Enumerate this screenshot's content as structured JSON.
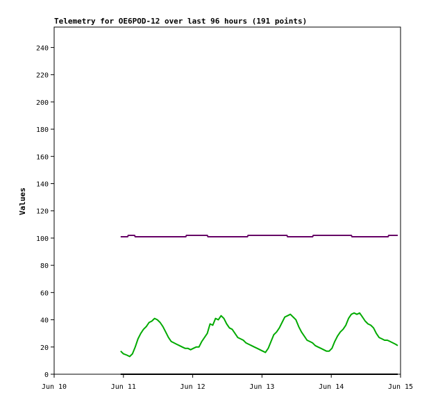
{
  "chart_data": {
    "type": "line",
    "title": "Telemetry for OE6POD-12 over last 96 hours (191 points)",
    "xlabel": "",
    "ylabel": "Values",
    "xlim": [
      "Jun 10",
      "Jun 15"
    ],
    "ylim": [
      0,
      255
    ],
    "x_ticks": [
      "Jun 10",
      "Jun 11",
      "Jun 12",
      "Jun 13",
      "Jun 14",
      "Jun 15"
    ],
    "y_ticks": [
      0,
      20,
      40,
      60,
      80,
      100,
      120,
      140,
      160,
      180,
      200,
      220,
      240
    ],
    "grid": false,
    "legend": "none",
    "series": [
      {
        "color": "#660066",
        "x_days": [
          0.96,
          1.06,
          1.07,
          1.16,
          1.17,
          1.9,
          1.91,
          2.21,
          2.22,
          2.79,
          2.8,
          3.36,
          3.37,
          3.73,
          3.74,
          4.29,
          4.3,
          4.82,
          4.83,
          4.96
        ],
        "values": [
          101,
          101,
          102,
          102,
          101,
          101,
          102,
          102,
          101,
          101,
          102,
          102,
          101,
          101,
          102,
          102,
          101,
          101,
          102,
          102
        ]
      },
      {
        "color": "#00aa00",
        "x_days": [
          0.96,
          1.0,
          1.05,
          1.09,
          1.13,
          1.17,
          1.21,
          1.25,
          1.29,
          1.33,
          1.37,
          1.41,
          1.45,
          1.49,
          1.53,
          1.57,
          1.61,
          1.65,
          1.69,
          1.73,
          1.77,
          1.81,
          1.85,
          1.89,
          1.93,
          1.97,
          2.01,
          2.05,
          2.09,
          2.13,
          2.17,
          2.21,
          2.25,
          2.29,
          2.33,
          2.37,
          2.41,
          2.45,
          2.49,
          2.53,
          2.57,
          2.61,
          2.65,
          2.69,
          2.73,
          2.77,
          2.81,
          2.85,
          2.89,
          2.93,
          2.97,
          3.01,
          3.05,
          3.09,
          3.13,
          3.17,
          3.21,
          3.25,
          3.29,
          3.33,
          3.37,
          3.41,
          3.45,
          3.49,
          3.53,
          3.57,
          3.61,
          3.65,
          3.69,
          3.73,
          3.77,
          3.81,
          3.85,
          3.89,
          3.93,
          3.97,
          4.01,
          4.05,
          4.09,
          4.13,
          4.17,
          4.21,
          4.25,
          4.29,
          4.33,
          4.37,
          4.41,
          4.45,
          4.49,
          4.53,
          4.57,
          4.61,
          4.65,
          4.69,
          4.73,
          4.77,
          4.81,
          4.85,
          4.89,
          4.93,
          4.96
        ],
        "values": [
          17,
          15,
          14,
          13,
          15,
          20,
          26,
          30,
          33,
          35,
          38,
          39,
          41,
          40,
          38,
          35,
          31,
          27,
          24,
          23,
          22,
          21,
          20,
          19,
          19,
          18,
          19,
          20,
          20,
          24,
          27,
          30,
          37,
          36,
          41,
          40,
          43,
          41,
          37,
          34,
          33,
          30,
          27,
          26,
          25,
          23,
          22,
          21,
          20,
          19,
          18,
          17,
          16,
          19,
          24,
          29,
          31,
          34,
          38,
          42,
          43,
          44,
          42,
          40,
          35,
          31,
          28,
          25,
          24,
          23,
          21,
          20,
          19,
          18,
          17,
          17,
          19,
          24,
          28,
          31,
          33,
          36,
          41,
          44,
          45,
          44,
          45,
          42,
          39,
          37,
          36,
          34,
          30,
          27,
          26,
          25,
          25,
          24,
          23,
          22,
          21
        ]
      },
      {
        "color": "#000000",
        "x_days": [
          0.96,
          4.96
        ],
        "values": [
          0,
          0
        ]
      }
    ]
  }
}
